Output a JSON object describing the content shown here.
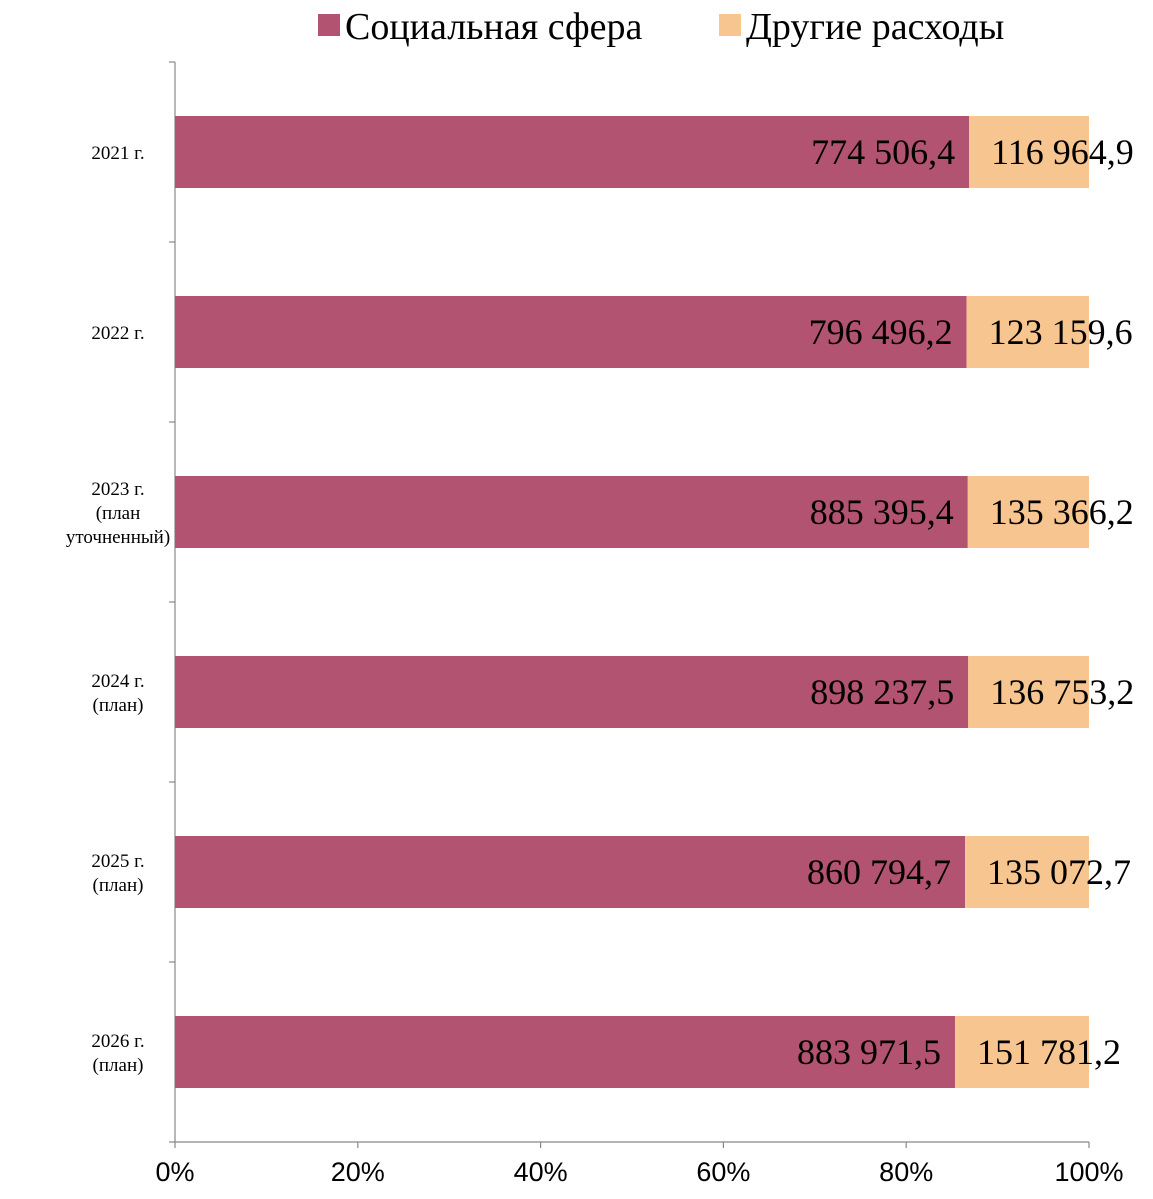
{
  "chart_data": {
    "type": "bar",
    "orientation": "horizontal",
    "stacked": "percent",
    "categories": [
      [
        "2021 г."
      ],
      [
        "2022 г."
      ],
      [
        "2023 г.",
        "(план",
        "уточненный)"
      ],
      [
        "2024 г.",
        "(план)"
      ],
      [
        "2025 г.",
        "(план)"
      ],
      [
        "2026 г.",
        "(план)"
      ]
    ],
    "series": [
      {
        "name": "Социальная сфера",
        "color": "#b35372",
        "values": [
          774506.4,
          796496.2,
          885395.4,
          898237.5,
          860794.7,
          883971.5
        ],
        "labels": [
          "774 506,4",
          "796 496,2",
          "885 395,4",
          "898 237,5",
          "860 794,7",
          "883 971,5"
        ]
      },
      {
        "name": "Другие расходы",
        "color": "#f7c690",
        "values": [
          116964.9,
          123159.6,
          135366.2,
          136753.2,
          135072.7,
          151781.2
        ],
        "labels": [
          "116 964,9",
          "123 159,6",
          "135 366,2",
          "136 753,2",
          "135 072,7",
          "151 781,2"
        ]
      }
    ],
    "x_ticks": [
      "0%",
      "20%",
      "40%",
      "60%",
      "80%",
      "100%"
    ],
    "xlim": [
      0,
      100
    ],
    "grid": false,
    "legend_position": "top"
  }
}
